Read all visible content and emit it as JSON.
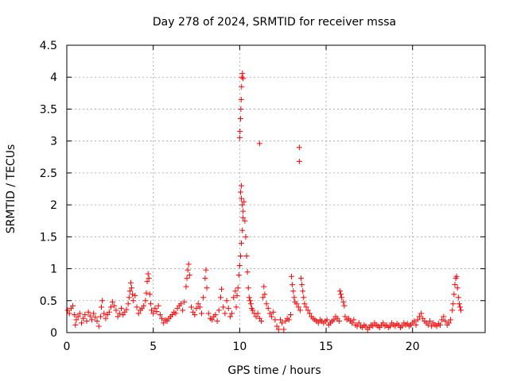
{
  "chart_data": {
    "type": "scatter",
    "title": "Day 278 of 2024, SRMTID for receiver mssa",
    "xlabel": "GPS time / hours",
    "ylabel": "SRMTID / TECUs",
    "xlim": [
      0,
      24.2
    ],
    "ylim": [
      0,
      4.5
    ],
    "xticks": [
      0,
      5,
      10,
      15,
      20
    ],
    "yticks": [
      0,
      0.5,
      1,
      1.5,
      2,
      2.5,
      3,
      3.5,
      4,
      4.5
    ],
    "xtick_labels": [
      "0",
      "5",
      "10",
      "15",
      "20"
    ],
    "ytick_labels": [
      "0",
      "0.5",
      "1",
      "1.5",
      "2",
      "2.5",
      "3",
      "3.5",
      "4",
      "4.5"
    ],
    "grid": true,
    "marker": "+",
    "color": "#ff0000",
    "series": [
      {
        "name": "mssa",
        "points": [
          [
            0.05,
            0.35
          ],
          [
            0.15,
            0.3
          ],
          [
            0.25,
            0.38
          ],
          [
            0.35,
            0.42
          ],
          [
            0.45,
            0.28
          ],
          [
            0.5,
            0.12
          ],
          [
            0.55,
            0.2
          ],
          [
            0.65,
            0.25
          ],
          [
            0.75,
            0.3
          ],
          [
            0.85,
            0.15
          ],
          [
            0.95,
            0.22
          ],
          [
            1.05,
            0.28
          ],
          [
            1.15,
            0.18
          ],
          [
            1.25,
            0.32
          ],
          [
            1.35,
            0.26
          ],
          [
            1.45,
            0.2
          ],
          [
            1.55,
            0.3
          ],
          [
            1.65,
            0.24
          ],
          [
            1.75,
            0.18
          ],
          [
            1.85,
            0.1
          ],
          [
            1.95,
            0.25
          ],
          [
            2.0,
            0.4
          ],
          [
            2.05,
            0.5
          ],
          [
            2.15,
            0.3
          ],
          [
            2.25,
            0.22
          ],
          [
            2.35,
            0.28
          ],
          [
            2.45,
            0.32
          ],
          [
            2.55,
            0.4
          ],
          [
            2.65,
            0.48
          ],
          [
            2.75,
            0.42
          ],
          [
            2.85,
            0.35
          ],
          [
            2.95,
            0.25
          ],
          [
            3.05,
            0.3
          ],
          [
            3.15,
            0.38
          ],
          [
            3.25,
            0.28
          ],
          [
            3.35,
            0.32
          ],
          [
            3.45,
            0.36
          ],
          [
            3.55,
            0.45
          ],
          [
            3.6,
            0.55
          ],
          [
            3.65,
            0.65
          ],
          [
            3.7,
            0.78
          ],
          [
            3.75,
            0.7
          ],
          [
            3.8,
            0.6
          ],
          [
            3.85,
            0.5
          ],
          [
            3.95,
            0.58
          ],
          [
            4.05,
            0.4
          ],
          [
            4.15,
            0.3
          ],
          [
            4.25,
            0.35
          ],
          [
            4.35,
            0.38
          ],
          [
            4.45,
            0.42
          ],
          [
            4.55,
            0.5
          ],
          [
            4.6,
            0.62
          ],
          [
            4.65,
            0.8
          ],
          [
            4.7,
            0.92
          ],
          [
            4.75,
            0.85
          ],
          [
            4.8,
            0.6
          ],
          [
            4.85,
            0.45
          ],
          [
            4.9,
            0.35
          ],
          [
            5.0,
            0.3
          ],
          [
            5.1,
            0.38
          ],
          [
            5.2,
            0.33
          ],
          [
            5.3,
            0.42
          ],
          [
            5.4,
            0.28
          ],
          [
            5.5,
            0.22
          ],
          [
            5.6,
            0.15
          ],
          [
            5.7,
            0.2
          ],
          [
            5.8,
            0.18
          ],
          [
            5.9,
            0.22
          ],
          [
            6.0,
            0.25
          ],
          [
            6.1,
            0.28
          ],
          [
            6.2,
            0.32
          ],
          [
            6.3,
            0.3
          ],
          [
            6.4,
            0.38
          ],
          [
            6.5,
            0.42
          ],
          [
            6.6,
            0.45
          ],
          [
            6.7,
            0.35
          ],
          [
            6.8,
            0.48
          ],
          [
            6.9,
            0.72
          ],
          [
            6.95,
            0.85
          ],
          [
            7.0,
            0.98
          ],
          [
            7.05,
            1.07
          ],
          [
            7.1,
            0.9
          ],
          [
            7.2,
            0.4
          ],
          [
            7.3,
            0.32
          ],
          [
            7.4,
            0.28
          ],
          [
            7.5,
            0.38
          ],
          [
            7.6,
            0.45
          ],
          [
            7.7,
            0.4
          ],
          [
            7.8,
            0.3
          ],
          [
            7.9,
            0.55
          ],
          [
            8.0,
            0.85
          ],
          [
            8.05,
            0.98
          ],
          [
            8.1,
            0.7
          ],
          [
            8.2,
            0.3
          ],
          [
            8.3,
            0.22
          ],
          [
            8.4,
            0.2
          ],
          [
            8.5,
            0.25
          ],
          [
            8.6,
            0.28
          ],
          [
            8.7,
            0.18
          ],
          [
            8.8,
            0.35
          ],
          [
            8.9,
            0.55
          ],
          [
            8.95,
            0.68
          ],
          [
            9.05,
            0.4
          ],
          [
            9.15,
            0.3
          ],
          [
            9.25,
            0.5
          ],
          [
            9.35,
            0.38
          ],
          [
            9.45,
            0.25
          ],
          [
            9.55,
            0.3
          ],
          [
            9.65,
            0.55
          ],
          [
            9.75,
            0.65
          ],
          [
            9.8,
            0.4
          ],
          [
            9.85,
            0.58
          ],
          [
            9.9,
            0.7
          ],
          [
            9.95,
            0.9
          ],
          [
            10.0,
            1.05
          ],
          [
            10.05,
            1.2
          ],
          [
            10.1,
            1.4
          ],
          [
            10.15,
            1.6
          ],
          [
            10.2,
            1.8
          ],
          [
            10.25,
            2.05
          ],
          [
            10.3,
            1.75
          ],
          [
            10.35,
            1.5
          ],
          [
            10.4,
            1.2
          ],
          [
            10.45,
            0.95
          ],
          [
            10.5,
            0.7
          ],
          [
            10.55,
            0.55
          ],
          [
            10.6,
            0.5
          ],
          [
            10.65,
            0.45
          ],
          [
            10.7,
            0.38
          ],
          [
            10.75,
            0.35
          ],
          [
            10.85,
            0.3
          ],
          [
            10.95,
            0.25
          ],
          [
            11.05,
            0.3
          ],
          [
            11.15,
            0.22
          ],
          [
            11.25,
            0.18
          ],
          [
            11.35,
            0.55
          ],
          [
            11.4,
            0.72
          ],
          [
            11.45,
            0.6
          ],
          [
            11.55,
            0.45
          ],
          [
            11.65,
            0.38
          ],
          [
            11.75,
            0.3
          ],
          [
            11.85,
            0.25
          ],
          [
            11.95,
            0.32
          ],
          [
            12.05,
            0.2
          ],
          [
            12.15,
            0.1
          ],
          [
            12.25,
            0.05
          ],
          [
            12.35,
            0.2
          ],
          [
            12.45,
            0.15
          ],
          [
            12.55,
            0.05
          ],
          [
            12.65,
            0.18
          ],
          [
            12.75,
            0.22
          ],
          [
            12.85,
            0.2
          ],
          [
            12.95,
            0.28
          ],
          [
            13.0,
            0.88
          ],
          [
            13.05,
            0.75
          ],
          [
            13.1,
            0.65
          ],
          [
            13.15,
            0.55
          ],
          [
            13.2,
            0.48
          ],
          [
            13.3,
            0.45
          ],
          [
            13.4,
            0.4
          ],
          [
            13.5,
            0.35
          ],
          [
            13.55,
            0.85
          ],
          [
            13.6,
            0.75
          ],
          [
            13.65,
            0.65
          ],
          [
            13.7,
            0.55
          ],
          [
            13.75,
            0.45
          ],
          [
            13.85,
            0.4
          ],
          [
            13.95,
            0.35
          ],
          [
            14.05,
            0.3
          ],
          [
            14.15,
            0.25
          ],
          [
            14.25,
            0.22
          ],
          [
            14.35,
            0.2
          ],
          [
            14.45,
            0.18
          ],
          [
            14.55,
            0.15
          ],
          [
            14.65,
            0.2
          ],
          [
            14.75,
            0.18
          ],
          [
            14.85,
            0.15
          ],
          [
            14.95,
            0.18
          ],
          [
            15.05,
            0.2
          ],
          [
            15.15,
            0.12
          ],
          [
            15.25,
            0.15
          ],
          [
            15.35,
            0.18
          ],
          [
            15.45,
            0.2
          ],
          [
            15.55,
            0.25
          ],
          [
            15.65,
            0.22
          ],
          [
            15.75,
            0.18
          ],
          [
            15.8,
            0.65
          ],
          [
            15.85,
            0.6
          ],
          [
            15.9,
            0.55
          ],
          [
            16.0,
            0.48
          ],
          [
            16.05,
            0.42
          ],
          [
            16.1,
            0.25
          ],
          [
            16.2,
            0.2
          ],
          [
            16.3,
            0.22
          ],
          [
            16.4,
            0.18
          ],
          [
            16.5,
            0.15
          ],
          [
            16.6,
            0.2
          ],
          [
            16.7,
            0.12
          ],
          [
            16.8,
            0.1
          ],
          [
            16.9,
            0.15
          ],
          [
            17.0,
            0.1
          ],
          [
            17.1,
            0.08
          ],
          [
            17.2,
            0.12
          ],
          [
            17.3,
            0.1
          ],
          [
            17.4,
            0.05
          ],
          [
            17.5,
            0.08
          ],
          [
            17.6,
            0.12
          ],
          [
            17.7,
            0.1
          ],
          [
            17.8,
            0.15
          ],
          [
            17.9,
            0.12
          ],
          [
            18.0,
            0.1
          ],
          [
            18.1,
            0.08
          ],
          [
            18.2,
            0.12
          ],
          [
            18.3,
            0.15
          ],
          [
            18.4,
            0.1
          ],
          [
            18.5,
            0.12
          ],
          [
            18.6,
            0.08
          ],
          [
            18.7,
            0.1
          ],
          [
            18.8,
            0.15
          ],
          [
            18.9,
            0.12
          ],
          [
            19.0,
            0.1
          ],
          [
            19.1,
            0.14
          ],
          [
            19.2,
            0.12
          ],
          [
            19.3,
            0.08
          ],
          [
            19.4,
            0.1
          ],
          [
            19.5,
            0.15
          ],
          [
            19.6,
            0.12
          ],
          [
            19.7,
            0.14
          ],
          [
            19.8,
            0.1
          ],
          [
            19.9,
            0.12
          ],
          [
            20.0,
            0.15
          ],
          [
            20.1,
            0.18
          ],
          [
            20.2,
            0.12
          ],
          [
            20.3,
            0.2
          ],
          [
            20.4,
            0.25
          ],
          [
            20.5,
            0.3
          ],
          [
            20.6,
            0.22
          ],
          [
            20.7,
            0.18
          ],
          [
            20.8,
            0.15
          ],
          [
            20.9,
            0.12
          ],
          [
            21.0,
            0.18
          ],
          [
            21.1,
            0.1
          ],
          [
            21.2,
            0.15
          ],
          [
            21.3,
            0.12
          ],
          [
            21.4,
            0.1
          ],
          [
            21.5,
            0.14
          ],
          [
            21.6,
            0.12
          ],
          [
            21.7,
            0.2
          ],
          [
            21.8,
            0.25
          ],
          [
            21.9,
            0.18
          ],
          [
            22.0,
            0.12
          ],
          [
            22.1,
            0.15
          ],
          [
            22.2,
            0.2
          ],
          [
            22.3,
            0.35
          ],
          [
            22.35,
            0.45
          ],
          [
            22.4,
            0.6
          ],
          [
            22.45,
            0.75
          ],
          [
            22.5,
            0.85
          ],
          [
            22.55,
            0.88
          ],
          [
            22.6,
            0.7
          ],
          [
            22.65,
            0.55
          ],
          [
            22.7,
            0.45
          ],
          [
            22.75,
            0.4
          ],
          [
            22.8,
            0.35
          ],
          [
            10.0,
            3.05
          ],
          [
            10.02,
            3.15
          ],
          [
            10.05,
            3.35
          ],
          [
            10.07,
            3.5
          ],
          [
            10.09,
            3.65
          ],
          [
            10.11,
            3.85
          ],
          [
            10.13,
            4.0
          ],
          [
            10.16,
            4.06
          ],
          [
            10.2,
            3.98
          ],
          [
            11.15,
            2.96
          ],
          [
            13.45,
            2.9
          ],
          [
            13.45,
            2.68
          ],
          [
            10.05,
            2.2
          ],
          [
            10.1,
            2.1
          ],
          [
            10.15,
            2.0
          ],
          [
            10.2,
            1.9
          ],
          [
            10.1,
            2.3
          ]
        ]
      }
    ]
  }
}
